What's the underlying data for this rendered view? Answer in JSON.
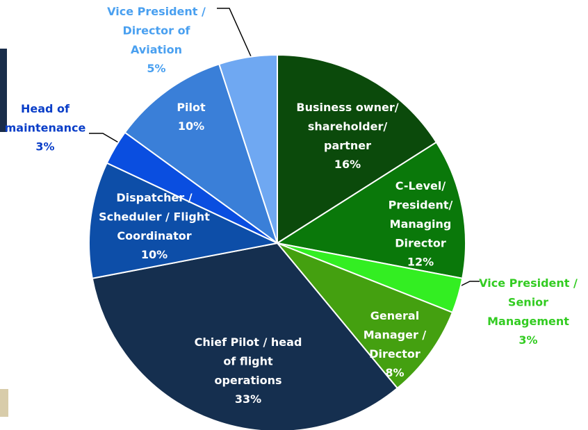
{
  "chart_data": {
    "type": "pie",
    "categories": [
      "Business owner/\nshareholder/\npartner",
      "C-Level/\nPresident/\nManaging\nDirector",
      "Vice President /\nSenior\nManagement",
      "General\nManager /\nDirector",
      "Chief Pilot / head\nof flight\noperations",
      "Dispatcher /\nScheduler / Flight\nCoordinator",
      "Head of\nmaintenance",
      "Pilot",
      "Vice President /\nDirector of\nAviation"
    ],
    "values": [
      16,
      12,
      3,
      8,
      33,
      10,
      3,
      10,
      5
    ],
    "value_labels": [
      "16%",
      "12%",
      "3%",
      "8%",
      "33%",
      "10%",
      "3%",
      "10%",
      "5%"
    ],
    "colors": [
      "#0b4a0b",
      "#0a780a",
      "#33ee22",
      "#44a010",
      "#152f4f",
      "#0d4ea8",
      "#0a4ee0",
      "#3a7fd8",
      "#6fa8f2"
    ]
  }
}
